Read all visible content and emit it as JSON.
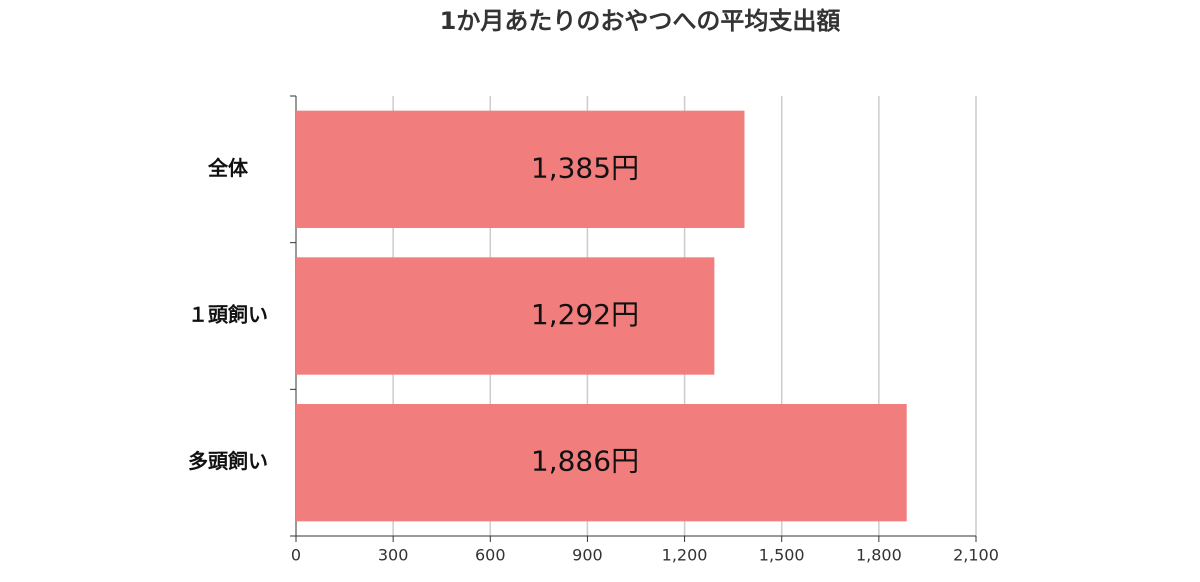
{
  "chart_data": {
    "type": "hbar",
    "title": "1か月あたりのおやつへの平均支出額",
    "categories": [
      "全体",
      "１頭飼い",
      "多頭飼い"
    ],
    "values": [
      1385,
      1292,
      1886
    ],
    "value_labels": [
      "1,385円",
      "1,292円",
      "1,886円"
    ],
    "color": "#f27d7d",
    "xlim": [
      0,
      2100
    ],
    "xticks": [
      0,
      300,
      600,
      900,
      {
        "value": 1200,
        "label": "1,200"
      },
      {
        "value": 1500,
        "label": "1,500"
      },
      {
        "value": 1800,
        "label": "1,800"
      },
      {
        "value": 2100,
        "label": "2,100"
      }
    ],
    "grid": true
  }
}
